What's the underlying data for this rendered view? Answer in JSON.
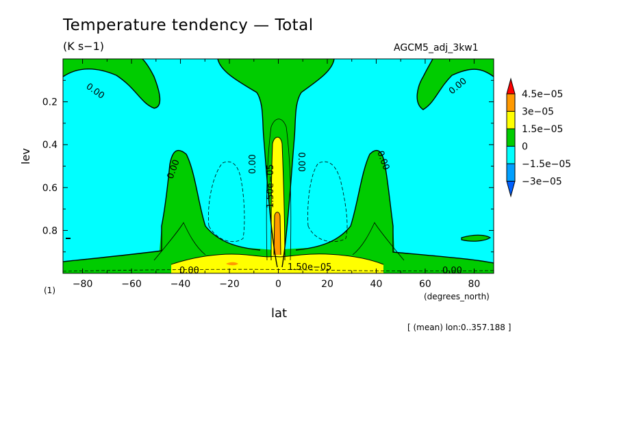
{
  "header": {
    "title": "Temperature tendency — Total",
    "units": "(K s−1)",
    "model": "AGCM5_adj_3kw1",
    "mean_note": "[ (mean) lon:0..357.188 ]",
    "level_note": "(1)"
  },
  "colors": {
    "lt_neg15": "#00a0ff",
    "neg15_0": "#00ffff",
    "0_15": "#00cc00",
    "15_30": "#ffff00",
    "30_45": "#ff9900",
    "gt_45": "#ff0000",
    "below_neg30": "#0060ff"
  },
  "chart_data": {
    "type": "heatmap",
    "subtype": "filled-contour",
    "title": "Temperature tendency — Total",
    "xlabel": "lat",
    "xunits": "(degrees_north)",
    "ylabel": "lev",
    "xlim": [
      -88,
      88
    ],
    "ylim": [
      0.0,
      1.0
    ],
    "y_inverted": true,
    "x_ticks": [
      -80,
      -60,
      -40,
      -20,
      0,
      20,
      40,
      60,
      80
    ],
    "x_tick_labels": [
      "−80",
      "−60",
      "−40",
      "−20",
      "0",
      "20",
      "40",
      "60",
      "80"
    ],
    "y_ticks": [
      0.2,
      0.4,
      0.6,
      0.8
    ],
    "y_tick_labels": [
      "0.2",
      "0.4",
      "0.6",
      "0.8"
    ],
    "colorbar": {
      "levels": [
        -3e-05,
        -1.5e-05,
        0,
        1.5e-05,
        3e-05,
        4.5e-05
      ],
      "labels": [
        "−3e−05",
        "−1.5e−05",
        "0",
        "1.5e−05",
        "3e−05",
        "4.5e−05"
      ],
      "extend": "both"
    },
    "contour_labels": [
      "0.00",
      "0.00",
      "0.00",
      "0.00",
      "0.00",
      "0.00",
      "1.50e−05",
      "1.50e−05",
      "0.00",
      "0.00"
    ]
  }
}
